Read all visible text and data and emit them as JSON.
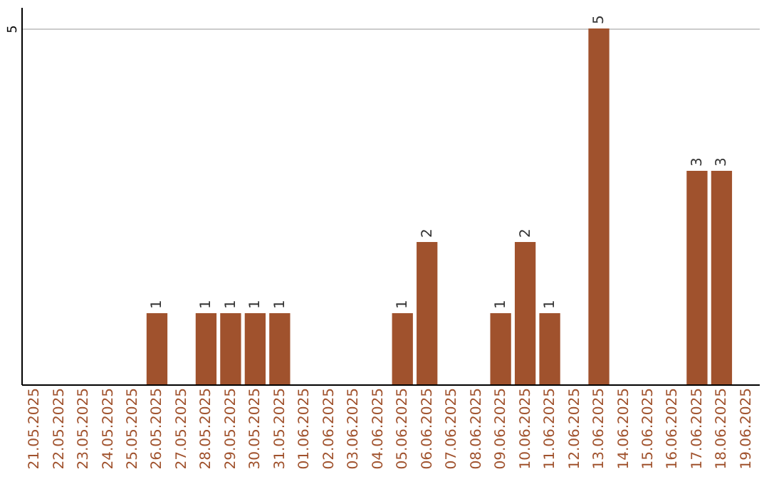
{
  "chart_data": {
    "type": "bar",
    "categories": [
      "21.05.2025",
      "22.05.2025",
      "23.05.2025",
      "24.05.2025",
      "25.05.2025",
      "26.05.2025",
      "27.05.2025",
      "28.05.2025",
      "29.05.2025",
      "30.05.2025",
      "31.05.2025",
      "01.06.2025",
      "02.06.2025",
      "03.06.2025",
      "04.06.2025",
      "05.06.2025",
      "06.06.2025",
      "07.06.2025",
      "08.06.2025",
      "09.06.2025",
      "10.06.2025",
      "11.06.2025",
      "12.06.2025",
      "13.06.2025",
      "14.06.2025",
      "15.06.2025",
      "16.06.2025",
      "17.06.2025",
      "18.06.2025",
      "19.06.2025"
    ],
    "values": [
      0,
      0,
      0,
      0,
      0,
      1,
      0,
      1,
      1,
      1,
      1,
      0,
      0,
      0,
      0,
      1,
      2,
      0,
      0,
      1,
      2,
      1,
      0,
      5,
      0,
      0,
      0,
      3,
      3,
      0
    ],
    "value_labels": [
      null,
      null,
      null,
      null,
      null,
      "1",
      null,
      "1",
      "1",
      "1",
      "1",
      null,
      null,
      null,
      null,
      "1",
      "2",
      null,
      null,
      "1",
      "2",
      "1",
      null,
      "5",
      null,
      null,
      null,
      "3",
      "3",
      null
    ],
    "color": "#a0522d",
    "ylim": [
      0,
      5.3
    ],
    "yticks": [
      5
    ],
    "grid": "y"
  }
}
